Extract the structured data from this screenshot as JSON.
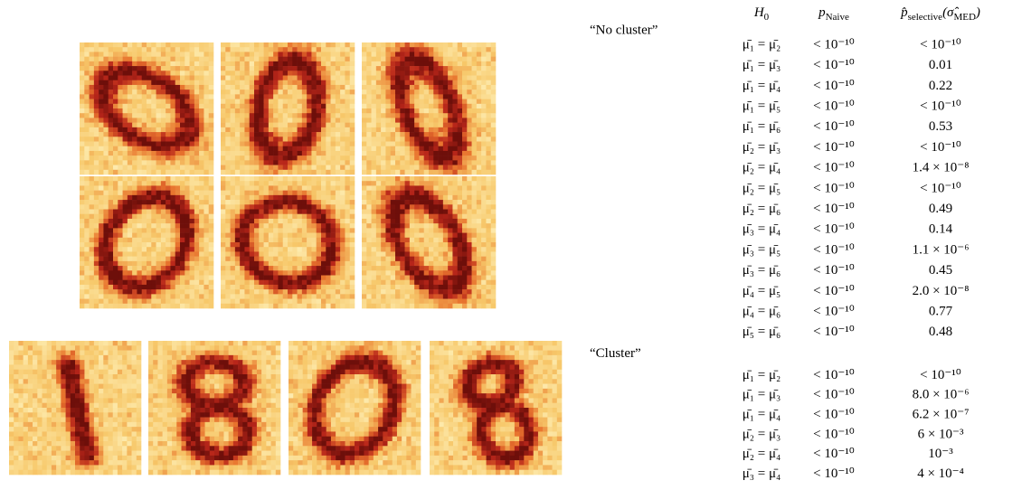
{
  "table": {
    "header": [
      [
        "H",
        "0"
      ],
      [
        "p",
        "Naive"
      ],
      [
        "p̂",
        "selective",
        "(σ̂",
        "MED",
        ")"
      ]
    ],
    "sections": [
      {
        "label": "“No cluster”",
        "rows": [
          [
            "μ̄₁ = μ̄₂",
            "< 10⁻¹⁰",
            "< 10⁻¹⁰"
          ],
          [
            "μ̄₁ = μ̄₃",
            "< 10⁻¹⁰",
            "0.01"
          ],
          [
            "μ̄₁ = μ̄₄",
            "< 10⁻¹⁰",
            "0.22"
          ],
          [
            "μ̄₁ = μ̄₅",
            "< 10⁻¹⁰",
            "< 10⁻¹⁰"
          ],
          [
            "μ̄₁ = μ̄₆",
            "< 10⁻¹⁰",
            "0.53"
          ],
          [
            "μ̄₂ = μ̄₃",
            "< 10⁻¹⁰",
            "< 10⁻¹⁰"
          ],
          [
            "μ̄₂ = μ̄₄",
            "< 10⁻¹⁰",
            "1.4 × 10⁻⁸"
          ],
          [
            "μ̄₂ = μ̄₅",
            "< 10⁻¹⁰",
            "< 10⁻¹⁰"
          ],
          [
            "μ̄₂ = μ̄₆",
            "< 10⁻¹⁰",
            "0.49"
          ],
          [
            "μ̄₃ = μ̄₄",
            "< 10⁻¹⁰",
            "0.14"
          ],
          [
            "μ̄₃ = μ̄₅",
            "< 10⁻¹⁰",
            "1.1 × 10⁻⁶"
          ],
          [
            "μ̄₃ = μ̄₆",
            "< 10⁻¹⁰",
            "0.45"
          ],
          [
            "μ̄₄ = μ̄₅",
            "< 10⁻¹⁰",
            "2.0 × 10⁻⁸"
          ],
          [
            "μ̄₄ = μ̄₆",
            "< 10⁻¹⁰",
            "0.77"
          ],
          [
            "μ̄₅ = μ̄₆",
            "< 10⁻¹⁰",
            "0.48"
          ]
        ]
      },
      {
        "label": "“Cluster”",
        "rows": [
          [
            "μ̄₁ = μ̄₂",
            "< 10⁻¹⁰",
            "< 10⁻¹⁰"
          ],
          [
            "μ̄₁ = μ̄₃",
            "< 10⁻¹⁰",
            "8.0 × 10⁻⁶"
          ],
          [
            "μ̄₁ = μ̄₄",
            "< 10⁻¹⁰",
            "6.2 × 10⁻⁷"
          ],
          [
            "μ̄₂ = μ̄₃",
            "< 10⁻¹⁰",
            "6 × 10⁻³"
          ],
          [
            "μ̄₂ = μ̄₄",
            "< 10⁻¹⁰",
            "10⁻³"
          ],
          [
            "μ̄₃ = μ̄₄",
            "< 10⁻¹⁰",
            "4 × 10⁻⁴"
          ]
        ]
      }
    ]
  }
}
